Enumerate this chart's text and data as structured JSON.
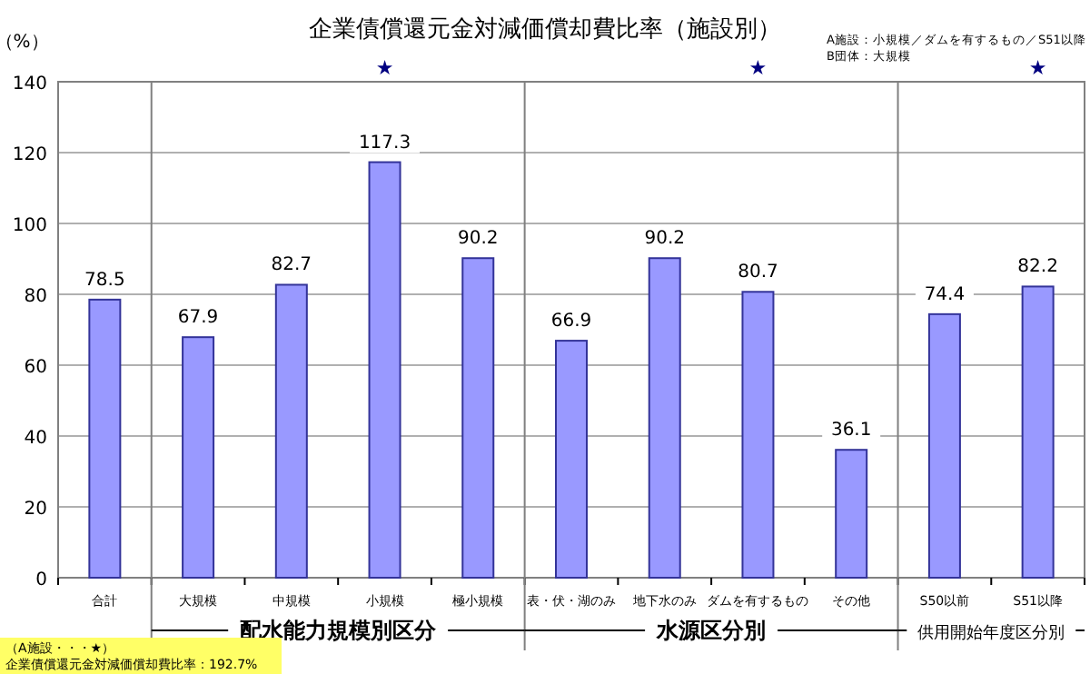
{
  "chart_data": {
    "type": "bar",
    "title": "企業債償還元金対減価償却費比率（施設別）",
    "ylabel": "（%）",
    "categories": [
      "合計",
      "大規模",
      "中規模",
      "小規模",
      "極小規模",
      "表・伏・湖のみ",
      "地下水のみ",
      "ダムを有するもの",
      "その他",
      "S50以前",
      "S51以降"
    ],
    "values": [
      78.5,
      67.9,
      82.7,
      117.3,
      90.2,
      66.9,
      90.2,
      80.7,
      36.1,
      74.4,
      82.2
    ],
    "color": "#9999ff",
    "ylim": [
      0,
      140
    ],
    "yticks": [
      0,
      20,
      40,
      60,
      80,
      100,
      120,
      140
    ],
    "grid": "y",
    "data_labels": true,
    "annotations": [
      "配水能力規模別区分",
      "水源区分別",
      "供用開始年度区分別",
      "A施設：小規模／ダムを有するもの／S51以降",
      "B団体：大規模",
      "（A施設・・・★）",
      "企業債償還元金対減価償却費比率：192.7%",
      "★",
      "★",
      "★"
    ]
  }
}
